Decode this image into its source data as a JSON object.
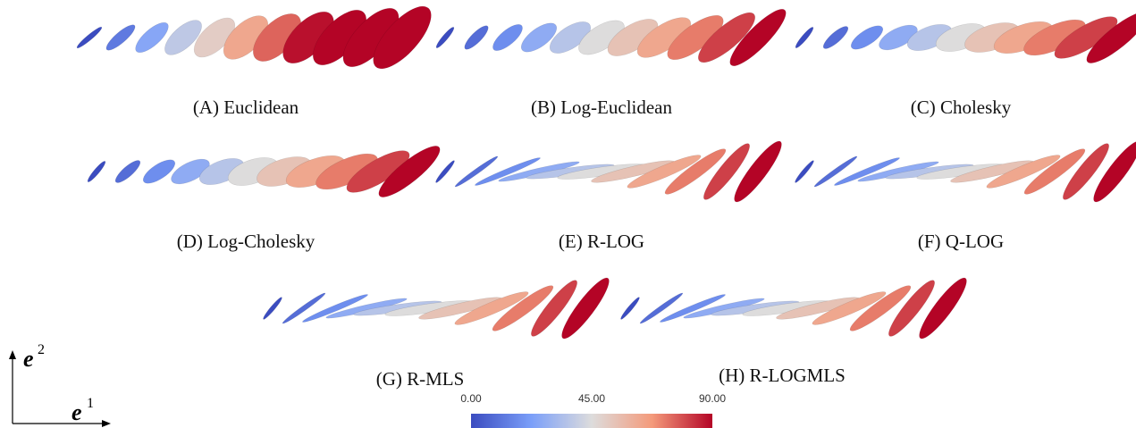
{
  "panels": [
    {
      "label": "(A) Euclidean"
    },
    {
      "label": "(B) Log-Euclidean"
    },
    {
      "label": "(C) Cholesky"
    },
    {
      "label": "(D) Log-Cholesky"
    },
    {
      "label": "(E) R-LOG"
    },
    {
      "label": "(F) Q-LOG"
    },
    {
      "label": "(G) R-MLS"
    },
    {
      "label": "(H) R-LOGMLS"
    }
  ],
  "colorbar": {
    "ticks": [
      "0.00",
      "45.00",
      "90.00"
    ]
  },
  "axes": {
    "x": {
      "symbol": "e",
      "index": "1"
    },
    "y": {
      "symbol": "e",
      "index": "2"
    }
  }
}
